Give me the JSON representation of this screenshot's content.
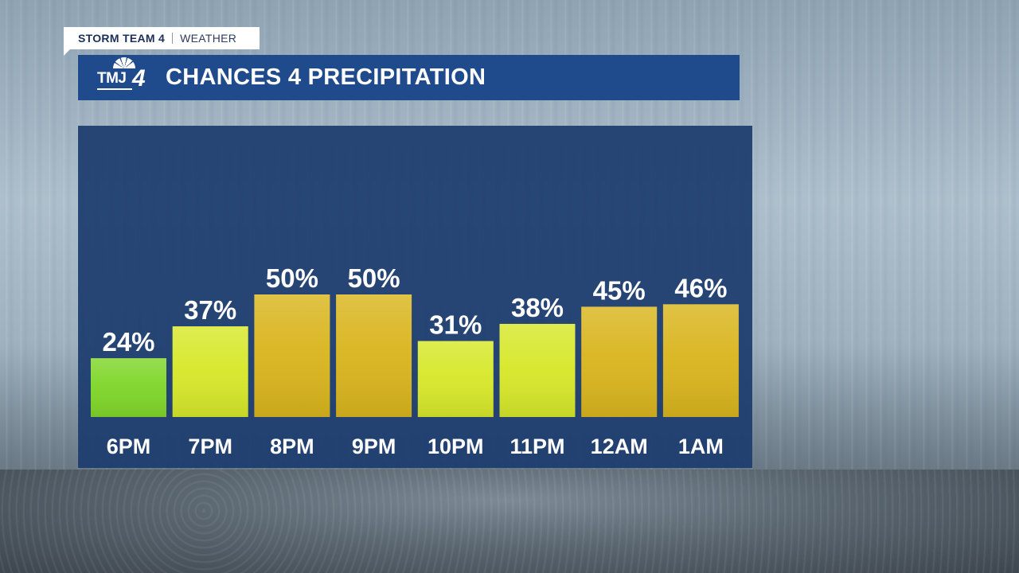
{
  "brand": {
    "program": "STORM TEAM 4",
    "section": "WEATHER"
  },
  "logo": {
    "station_text": "TMJ",
    "station_number": "4"
  },
  "header": {
    "title": "CHANCES 4 PRECIPITATION"
  },
  "colors": {
    "header_bar": "#1f4a8c",
    "panel": "#1c3c6e",
    "low": "#7fd62a",
    "mid": "#d7e82a",
    "high": "#d9b51e"
  },
  "chart_data": {
    "type": "bar",
    "title": "CHANCES 4 PRECIPITATION",
    "categories": [
      "6PM",
      "7PM",
      "8PM",
      "9PM",
      "10PM",
      "11PM",
      "12AM",
      "1AM"
    ],
    "values": [
      24,
      37,
      50,
      50,
      31,
      38,
      45,
      46
    ],
    "value_labels": [
      "24%",
      "37%",
      "50%",
      "50%",
      "31%",
      "38%",
      "45%",
      "46%"
    ],
    "unit": "%",
    "ylim": [
      0,
      50
    ],
    "grid": false,
    "legend": "none"
  }
}
